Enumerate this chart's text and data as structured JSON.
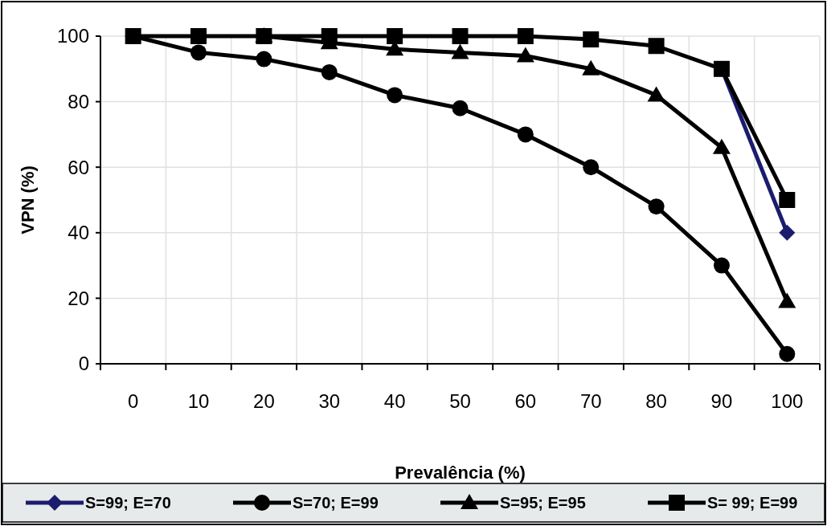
{
  "chart_data": {
    "type": "line",
    "xlabel": "Prevalência (%)",
    "ylabel": "VPN (%)",
    "categories": [
      "0",
      "10",
      "20",
      "30",
      "40",
      "50",
      "60",
      "70",
      "80",
      "90",
      "100"
    ],
    "ylim": [
      0,
      100
    ],
    "yticks": [
      0,
      20,
      40,
      60,
      80,
      100
    ],
    "grid": true,
    "legend": "bottom",
    "series": [
      {
        "name": "S=99; E=70",
        "color": "#1c1c6e",
        "marker": "diamond",
        "values": [
          null,
          null,
          null,
          null,
          null,
          null,
          null,
          null,
          null,
          90,
          40
        ]
      },
      {
        "name": "S=70; E=99",
        "color": "#000000",
        "marker": "circle",
        "values": [
          100,
          95,
          93,
          89,
          82,
          78,
          70,
          60,
          48,
          30,
          3
        ]
      },
      {
        "name": "S=95; E=95",
        "color": "#000000",
        "marker": "triangle",
        "values": [
          null,
          null,
          100,
          98,
          96,
          95,
          94,
          90,
          82,
          66,
          19
        ]
      },
      {
        "name": "S= 99; E=99",
        "color": "#000000",
        "marker": "square",
        "values": [
          100,
          100,
          100,
          100,
          100,
          100,
          100,
          99,
          97,
          90,
          50
        ]
      }
    ]
  }
}
